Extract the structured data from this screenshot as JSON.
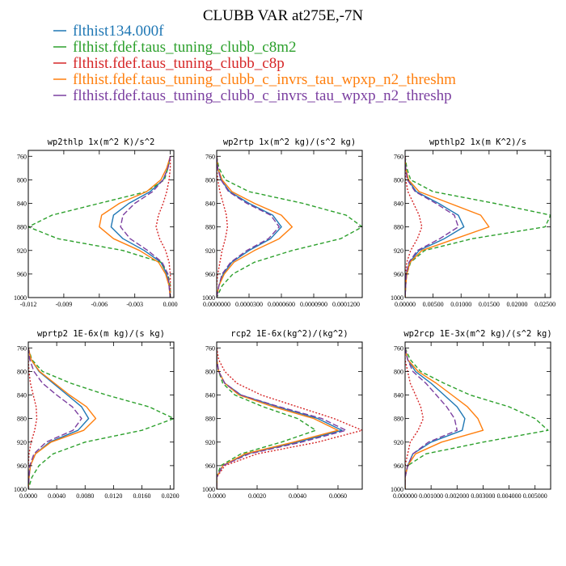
{
  "title": "CLUBB VAR at275E,-7N",
  "legend": [
    {
      "name": "flthist134.000f",
      "color": "#1f77b4"
    },
    {
      "name": "flthist.fdef.taus_tuning_clubb_c8m2",
      "color": "#2ca02c"
    },
    {
      "name": "flthist.fdef.taus_tuning_clubb_c8p",
      "color": "#d62728"
    },
    {
      "name": "flthist.fdef.taus_tuning_clubb_c_invrs_tau_wpxp_n2_threshm",
      "color": "#ff7f0e"
    },
    {
      "name": "flthist.fdef.taus_tuning_clubb_c_invrs_tau_wpxp_n2_threshp",
      "color": "#7b3fa0"
    }
  ],
  "chart_data": [
    {
      "type": "line",
      "title": "wp2thlp  1x(m^2 K)/s^2",
      "xlim": [
        -0.012,
        0.0003
      ],
      "ylim": [
        1000,
        750
      ],
      "xticks": [
        -0.012,
        -0.009,
        -0.006,
        -0.003,
        0.0
      ],
      "xtick_labels": [
        "-0.012",
        "-0.009",
        "-0.006",
        "-0.003",
        "0.000"
      ],
      "yticks": [
        760,
        800,
        840,
        880,
        920,
        960,
        1000
      ],
      "y": [
        760,
        780,
        800,
        820,
        840,
        860,
        880,
        900,
        920,
        940,
        960,
        980,
        1000
      ],
      "series": [
        {
          "values": [
            0,
            -0.0002,
            -0.0006,
            -0.0017,
            -0.0035,
            -0.0048,
            -0.005,
            -0.004,
            -0.0022,
            -0.0008,
            -0.0003,
            -0.0001,
            0
          ]
        },
        {
          "values": [
            0,
            -0.0002,
            -0.0005,
            -0.002,
            -0.006,
            -0.01,
            -0.012,
            -0.0095,
            -0.004,
            -0.0008,
            -0.0002,
            0,
            0
          ]
        },
        {
          "values": [
            0,
            0,
            -0.0001,
            -0.0003,
            -0.0006,
            -0.001,
            -0.0012,
            -0.0009,
            -0.0004,
            -0.0001,
            0,
            0,
            0
          ]
        },
        {
          "values": [
            0,
            -0.0003,
            -0.0008,
            -0.002,
            -0.0043,
            -0.0058,
            -0.006,
            -0.0048,
            -0.0026,
            -0.001,
            -0.0004,
            -0.0001,
            0
          ]
        },
        {
          "values": [
            0,
            -0.0002,
            -0.0006,
            -0.0015,
            -0.003,
            -0.004,
            -0.0042,
            -0.0034,
            -0.0019,
            -0.0007,
            -0.0002,
            -0.0001,
            0
          ]
        }
      ]
    },
    {
      "type": "line",
      "title": "wp2rtp  1x(m^2 kg)/(s^2 kg)",
      "xlim": [
        0,
        0.000135
      ],
      "ylim": [
        1000,
        750
      ],
      "xticks": [
        0,
        3e-05,
        6e-05,
        9e-05,
        0.00012
      ],
      "xtick_labels": [
        "0.0000000",
        "0.0000300",
        "0.0000600",
        "0.0000900",
        "0.0001200"
      ],
      "yticks": [
        760,
        800,
        840,
        880,
        920,
        960,
        1000
      ],
      "y": [
        760,
        780,
        800,
        820,
        840,
        860,
        880,
        900,
        920,
        940,
        960,
        980,
        1000
      ],
      "series": [
        {
          "values": [
            0,
            1e-06,
            4e-06,
            1.2e-05,
            3e-05,
            5.2e-05,
            6e-05,
            5e-05,
            3e-05,
            1.4e-05,
            6e-06,
            2e-06,
            0
          ]
        },
        {
          "values": [
            0,
            2e-06,
            8e-06,
            3e-05,
            8e-05,
            0.00012,
            0.000135,
            0.000115,
            7e-05,
            3.5e-05,
            1.5e-05,
            5e-06,
            0
          ]
        },
        {
          "values": [
            0,
            0,
            1e-06,
            3e-06,
            6e-06,
            9e-06,
            1e-05,
            8e-06,
            5e-06,
            3e-06,
            1e-06,
            0,
            0
          ]
        },
        {
          "values": [
            0,
            1e-06,
            5e-06,
            1.4e-05,
            3.5e-05,
            6e-05,
            7e-05,
            5.8e-05,
            3.5e-05,
            1.6e-05,
            7e-06,
            2e-06,
            0
          ]
        },
        {
          "values": [
            0,
            1e-06,
            4e-06,
            1.1e-05,
            2.8e-05,
            5e-05,
            5.8e-05,
            4.8e-05,
            2.8e-05,
            1.3e-05,
            5e-06,
            2e-06,
            0
          ]
        }
      ]
    },
    {
      "type": "line",
      "title": "wpthlp2  1x(m K^2)/s",
      "xlim": [
        0,
        0.026
      ],
      "ylim": [
        1000,
        750
      ],
      "xticks": [
        0,
        0.005,
        0.01,
        0.015,
        0.02,
        0.025
      ],
      "xtick_labels": [
        "0.00000",
        "0.00500",
        "0.01000",
        "0.01500",
        "0.02000",
        "0.02500"
      ],
      "yticks": [
        760,
        800,
        840,
        880,
        920,
        960,
        1000
      ],
      "y": [
        760,
        780,
        800,
        820,
        840,
        860,
        880,
        900,
        920,
        940,
        960,
        980,
        1000
      ],
      "series": [
        {
          "values": [
            0,
            0.0001,
            0.0005,
            0.002,
            0.006,
            0.0095,
            0.0105,
            0.007,
            0.0025,
            0.0008,
            0.0002,
            0.0001,
            0
          ]
        },
        {
          "values": [
            0,
            0.0003,
            0.001,
            0.005,
            0.016,
            0.026,
            0.025,
            0.012,
            0.0035,
            0.001,
            0.0003,
            0.0001,
            0
          ]
        },
        {
          "values": [
            0,
            0,
            0.0001,
            0.0005,
            0.0015,
            0.0025,
            0.003,
            0.0022,
            0.001,
            0.0003,
            0.0001,
            0,
            0
          ]
        },
        {
          "values": [
            0,
            0.0001,
            0.0006,
            0.0025,
            0.008,
            0.0135,
            0.015,
            0.009,
            0.003,
            0.0009,
            0.0003,
            0.0001,
            0
          ]
        },
        {
          "values": [
            0,
            0.0001,
            0.0004,
            0.0018,
            0.0055,
            0.0088,
            0.0095,
            0.0062,
            0.0022,
            0.0007,
            0.0002,
            0.0001,
            0
          ]
        }
      ]
    },
    {
      "type": "line",
      "title": "wprtp2  1E-6x(m kg)/(s kg)",
      "xlim": [
        0,
        0.0205
      ],
      "ylim": [
        1000,
        750
      ],
      "xticks": [
        0,
        0.004,
        0.008,
        0.012,
        0.016,
        0.02
      ],
      "xtick_labels": [
        "0.0000",
        "0.0040",
        "0.0080",
        "0.0120",
        "0.0160",
        "0.0200"
      ],
      "yticks": [
        760,
        800,
        840,
        880,
        920,
        960,
        1000
      ],
      "y": [
        760,
        780,
        800,
        820,
        840,
        860,
        880,
        900,
        920,
        940,
        960,
        980,
        1000
      ],
      "series": [
        {
          "values": [
            0,
            0.0004,
            0.0015,
            0.0035,
            0.0055,
            0.0075,
            0.0085,
            0.007,
            0.003,
            0.001,
            0.0003,
            0.0001,
            0
          ]
        },
        {
          "values": [
            0,
            0.0005,
            0.002,
            0.006,
            0.011,
            0.017,
            0.0205,
            0.016,
            0.008,
            0.0035,
            0.0015,
            0.0005,
            0
          ]
        },
        {
          "values": [
            0,
            0,
            0.0001,
            0.0003,
            0.0007,
            0.0011,
            0.0012,
            0.0009,
            0.0004,
            0.0001,
            0,
            0,
            0
          ]
        },
        {
          "values": [
            0,
            0.0004,
            0.0016,
            0.0037,
            0.0058,
            0.0082,
            0.0095,
            0.0078,
            0.0032,
            0.001,
            0.0003,
            0.0001,
            0
          ]
        },
        {
          "values": [
            0,
            0.0002,
            0.0008,
            0.002,
            0.004,
            0.0062,
            0.0075,
            0.0063,
            0.0025,
            0.0008,
            0.0002,
            0.0001,
            0
          ]
        }
      ]
    },
    {
      "type": "line",
      "title": "rcp2  1E-6x(kg^2)/(kg^2)",
      "xlim": [
        0,
        0.0072
      ],
      "ylim": [
        1000,
        750
      ],
      "xticks": [
        0,
        0.002,
        0.004,
        0.006
      ],
      "xtick_labels": [
        "0.0000",
        "0.0020",
        "0.0040",
        "0.0060"
      ],
      "yticks": [
        760,
        800,
        840,
        880,
        920,
        960,
        1000
      ],
      "y": [
        760,
        780,
        800,
        820,
        840,
        860,
        880,
        900,
        920,
        940,
        960,
        980,
        1000
      ],
      "series": [
        {
          "values": [
            0,
            0,
            0.0001,
            0.0004,
            0.0012,
            0.003,
            0.005,
            0.0062,
            0.004,
            0.0015,
            0.0003,
            0,
            0
          ]
        },
        {
          "values": [
            0,
            0,
            0.0001,
            0.0003,
            0.0009,
            0.0023,
            0.004,
            0.0049,
            0.0032,
            0.0012,
            0.0002,
            0,
            0
          ]
        },
        {
          "values": [
            0,
            0.0001,
            0.0004,
            0.001,
            0.0022,
            0.004,
            0.0058,
            0.0072,
            0.005,
            0.002,
            0.0004,
            0,
            0
          ]
        },
        {
          "values": [
            0,
            0,
            0.0001,
            0.0004,
            0.0011,
            0.0028,
            0.0048,
            0.006,
            0.0038,
            0.0014,
            0.0003,
            0,
            0
          ]
        },
        {
          "values": [
            0,
            0,
            0.0001,
            0.0004,
            0.0012,
            0.0031,
            0.0052,
            0.0064,
            0.0042,
            0.0016,
            0.0003,
            0,
            0
          ]
        }
      ]
    },
    {
      "type": "line",
      "title": "wp2rcp  1E-3x(m^2 kg)/(s^2 kg)",
      "xlim": [
        0,
        0.0056
      ],
      "ylim": [
        1000,
        750
      ],
      "xticks": [
        0,
        0.001,
        0.002,
        0.003,
        0.004,
        0.005
      ],
      "xtick_labels": [
        "0.000000",
        "0.001000",
        "0.002000",
        "0.003000",
        "0.004000",
        "0.005000"
      ],
      "yticks": [
        760,
        800,
        840,
        880,
        920,
        960,
        1000
      ],
      "y": [
        760,
        780,
        800,
        820,
        840,
        860,
        880,
        900,
        920,
        940,
        960,
        980,
        1000
      ],
      "series": [
        {
          "values": [
            0,
            0.0001,
            0.0004,
            0.001,
            0.0015,
            0.002,
            0.0023,
            0.0022,
            0.001,
            0.0003,
            0.0001,
            0,
            0
          ]
        },
        {
          "values": [
            0,
            0.0002,
            0.0006,
            0.0015,
            0.0025,
            0.004,
            0.005,
            0.0055,
            0.003,
            0.0008,
            0.0001,
            0,
            0
          ]
        },
        {
          "values": [
            0,
            0,
            0.0001,
            0.0002,
            0.0004,
            0.0006,
            0.0007,
            0.0005,
            0.0002,
            0.0001,
            0,
            0,
            0
          ]
        },
        {
          "values": [
            0,
            0.0001,
            0.0005,
            0.0012,
            0.0018,
            0.0024,
            0.0028,
            0.003,
            0.0014,
            0.0004,
            0.0001,
            0,
            0
          ]
        },
        {
          "values": [
            0,
            0.0001,
            0.0003,
            0.0008,
            0.0012,
            0.0016,
            0.0019,
            0.002,
            0.0009,
            0.0003,
            0.0001,
            0,
            0
          ]
        }
      ]
    }
  ]
}
